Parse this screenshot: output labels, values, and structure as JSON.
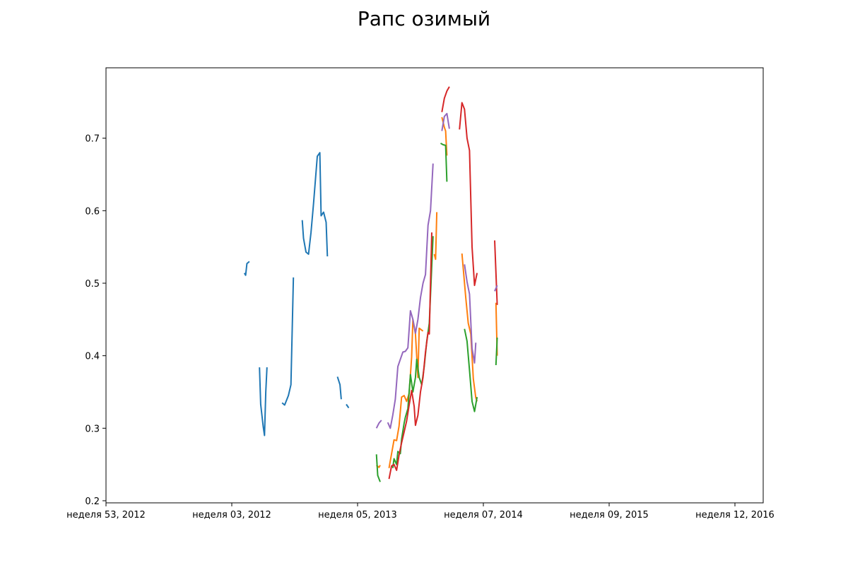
{
  "chart_data": {
    "type": "line",
    "title": "Рапс озимый",
    "xlabel": "",
    "ylabel": "",
    "x_tick_labels": [
      "неделя 53, 2012",
      "неделя 03, 2012",
      "неделя 05, 2013",
      "неделя 07, 2014",
      "неделя 09, 2015",
      "неделя 12, 2016"
    ],
    "y_ticks": [
      0.2,
      0.3,
      0.4,
      0.5,
      0.6,
      0.7
    ],
    "xlim": [
      0,
      5.2
    ],
    "ylim": [
      0.2,
      0.8
    ],
    "grid": false,
    "colors": [
      "#1f77b4",
      "#ff7f0e",
      "#2ca02c",
      "#d62728",
      "#9467bd"
    ],
    "series": [
      {
        "color": "#1f77b4",
        "segments": [
          [
            [
              1.1,
              0.514
            ],
            [
              1.11,
              0.511
            ],
            [
              1.12,
              0.527
            ],
            [
              1.14,
              0.53
            ]
          ],
          [
            [
              1.22,
              0.384
            ],
            [
              1.23,
              0.333
            ],
            [
              1.25,
              0.302
            ],
            [
              1.26,
              0.29
            ],
            [
              1.27,
              0.35
            ],
            [
              1.28,
              0.384
            ]
          ],
          [
            [
              1.4,
              0.335
            ],
            [
              1.42,
              0.332
            ],
            [
              1.45,
              0.345
            ],
            [
              1.47,
              0.36
            ],
            [
              1.49,
              0.508
            ]
          ],
          [
            [
              1.56,
              0.587
            ],
            [
              1.57,
              0.562
            ],
            [
              1.59,
              0.543
            ],
            [
              1.61,
              0.54
            ],
            [
              1.63,
              0.57
            ],
            [
              1.65,
              0.61
            ],
            [
              1.68,
              0.675
            ],
            [
              1.7,
              0.68
            ],
            [
              1.71,
              0.593
            ],
            [
              1.73,
              0.598
            ],
            [
              1.75,
              0.584
            ],
            [
              1.76,
              0.537
            ]
          ],
          [
            [
              1.84,
              0.371
            ],
            [
              1.86,
              0.36
            ],
            [
              1.87,
              0.34
            ]
          ],
          [
            [
              1.91,
              0.333
            ],
            [
              1.93,
              0.328
            ]
          ]
        ]
      },
      {
        "color": "#ff7f0e",
        "segments": [
          [
            [
              2.15,
              0.249
            ],
            [
              2.17,
              0.246
            ],
            [
              2.18,
              0.249
            ]
          ],
          [
            [
              2.25,
              0.245
            ],
            [
              2.29,
              0.284
            ],
            [
              2.31,
              0.283
            ],
            [
              2.33,
              0.303
            ],
            [
              2.35,
              0.343
            ],
            [
              2.37,
              0.345
            ],
            [
              2.39,
              0.337
            ],
            [
              2.41,
              0.348
            ],
            [
              2.43,
              0.398
            ],
            [
              2.44,
              0.45
            ],
            [
              2.46,
              0.43
            ],
            [
              2.48,
              0.37
            ],
            [
              2.49,
              0.438
            ],
            [
              2.52,
              0.434
            ]
          ],
          [
            [
              2.61,
              0.54
            ],
            [
              2.62,
              0.533
            ],
            [
              2.63,
              0.598
            ]
          ],
          [
            [
              2.67,
              0.729
            ],
            [
              2.69,
              0.715
            ],
            [
              2.7,
              0.71
            ],
            [
              2.71,
              0.676
            ]
          ],
          [
            [
              2.83,
              0.541
            ],
            [
              2.86,
              0.48
            ],
            [
              2.88,
              0.445
            ],
            [
              2.9,
              0.43
            ],
            [
              2.92,
              0.368
            ],
            [
              2.94,
              0.342
            ],
            [
              2.95,
              0.337
            ]
          ],
          [
            [
              3.1,
              0.473
            ],
            [
              3.11,
              0.4
            ]
          ]
        ]
      },
      {
        "color": "#2ca02c",
        "segments": [
          [
            [
              2.15,
              0.264
            ],
            [
              2.16,
              0.235
            ],
            [
              2.18,
              0.226
            ]
          ],
          [
            [
              2.28,
              0.245
            ],
            [
              2.29,
              0.258
            ],
            [
              2.31,
              0.25
            ],
            [
              2.32,
              0.268
            ],
            [
              2.34,
              0.265
            ],
            [
              2.35,
              0.285
            ],
            [
              2.37,
              0.307
            ],
            [
              2.38,
              0.315
            ],
            [
              2.4,
              0.327
            ],
            [
              2.42,
              0.374
            ],
            [
              2.44,
              0.35
            ],
            [
              2.46,
              0.37
            ],
            [
              2.47,
              0.395
            ],
            [
              2.49,
              0.37
            ],
            [
              2.51,
              0.36
            ],
            [
              2.53,
              0.385
            ],
            [
              2.55,
              0.42
            ],
            [
              2.57,
              0.445
            ],
            [
              2.6,
              0.565
            ]
          ],
          [
            [
              2.66,
              0.693
            ],
            [
              2.68,
              0.691
            ],
            [
              2.7,
              0.69
            ],
            [
              2.71,
              0.64
            ]
          ],
          [
            [
              2.85,
              0.437
            ],
            [
              2.87,
              0.42
            ],
            [
              2.89,
              0.38
            ],
            [
              2.91,
              0.337
            ],
            [
              2.93,
              0.323
            ],
            [
              2.95,
              0.343
            ]
          ],
          [
            [
              3.1,
              0.387
            ],
            [
              3.11,
              0.425
            ]
          ]
        ]
      },
      {
        "color": "#d62728",
        "segments": [
          [
            [
              2.25,
              0.23
            ],
            [
              2.27,
              0.248
            ],
            [
              2.29,
              0.25
            ],
            [
              2.31,
              0.242
            ],
            [
              2.33,
              0.263
            ],
            [
              2.35,
              0.28
            ],
            [
              2.37,
              0.295
            ],
            [
              2.39,
              0.31
            ],
            [
              2.41,
              0.332
            ],
            [
              2.43,
              0.352
            ],
            [
              2.45,
              0.33
            ],
            [
              2.46,
              0.304
            ],
            [
              2.48,
              0.318
            ],
            [
              2.5,
              0.35
            ],
            [
              2.52,
              0.37
            ],
            [
              2.54,
              0.405
            ],
            [
              2.56,
              0.432
            ],
            [
              2.57,
              0.43
            ],
            [
              2.58,
              0.5
            ],
            [
              2.59,
              0.57
            ]
          ],
          [
            [
              2.67,
              0.736
            ],
            [
              2.69,
              0.755
            ],
            [
              2.71,
              0.765
            ],
            [
              2.73,
              0.771
            ]
          ],
          [
            [
              2.81,
              0.712
            ],
            [
              2.83,
              0.749
            ],
            [
              2.85,
              0.74
            ],
            [
              2.87,
              0.7
            ],
            [
              2.89,
              0.683
            ],
            [
              2.91,
              0.55
            ],
            [
              2.93,
              0.497
            ],
            [
              2.95,
              0.514
            ]
          ],
          [
            [
              3.09,
              0.559
            ],
            [
              3.11,
              0.47
            ]
          ]
        ]
      },
      {
        "color": "#9467bd",
        "segments": [
          [
            [
              2.15,
              0.3
            ],
            [
              2.17,
              0.307
            ],
            [
              2.19,
              0.311
            ]
          ],
          [
            [
              2.24,
              0.308
            ],
            [
              2.26,
              0.3
            ],
            [
              2.28,
              0.318
            ],
            [
              2.3,
              0.34
            ],
            [
              2.32,
              0.385
            ],
            [
              2.34,
              0.395
            ],
            [
              2.36,
              0.405
            ],
            [
              2.38,
              0.406
            ],
            [
              2.4,
              0.411
            ],
            [
              2.42,
              0.462
            ],
            [
              2.44,
              0.45
            ],
            [
              2.46,
              0.431
            ],
            [
              2.48,
              0.45
            ],
            [
              2.5,
              0.48
            ],
            [
              2.52,
              0.5
            ],
            [
              2.54,
              0.512
            ],
            [
              2.56,
              0.58
            ],
            [
              2.58,
              0.6
            ],
            [
              2.6,
              0.665
            ]
          ],
          [
            [
              2.67,
              0.71
            ],
            [
              2.69,
              0.73
            ],
            [
              2.71,
              0.734
            ],
            [
              2.73,
              0.713
            ]
          ],
          [
            [
              2.85,
              0.526
            ],
            [
              2.87,
              0.502
            ],
            [
              2.89,
              0.485
            ],
            [
              2.91,
              0.41
            ],
            [
              2.93,
              0.39
            ],
            [
              2.94,
              0.418
            ]
          ],
          [
            [
              3.09,
              0.489
            ],
            [
              3.11,
              0.497
            ]
          ]
        ]
      }
    ]
  }
}
